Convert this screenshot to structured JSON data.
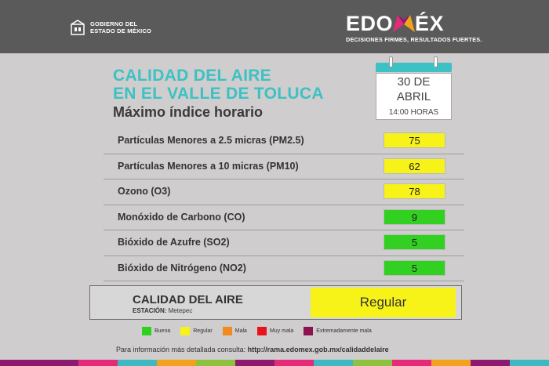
{
  "header": {
    "gov_line1": "GOBIERNO DEL",
    "gov_line2": "ESTADO DE MÉXICO",
    "brand_part1": "EDO",
    "brand_part2": "ÉX",
    "tagline": "DECISIONES FIRMES, RESULTADOS FUERTES."
  },
  "title": {
    "line1": "CALIDAD DEL AIRE",
    "line2": "EN EL VALLE DE TOLUCA",
    "subtitle": "Máximo índice horario"
  },
  "calendar": {
    "day": "30 DE",
    "month": "ABRIL",
    "time": "14:00 HORAS"
  },
  "pollutants": [
    {
      "label": "Partículas Menores a 2.5 micras (PM2.5)",
      "value": "75",
      "color": "#f7f318"
    },
    {
      "label": "Partículas Menores a 10 micras (PM10)",
      "value": "62",
      "color": "#f7f318"
    },
    {
      "label": "Ozono (O3)",
      "value": "78",
      "color": "#f7f318"
    },
    {
      "label": "Monóxido de Carbono (CO)",
      "value": "9",
      "color": "#31d021"
    },
    {
      "label": "Bióxido de Azufre (SO2)",
      "value": "5",
      "color": "#31d021"
    },
    {
      "label": "Bióxido de Nitrógeno (NO2)",
      "value": "5",
      "color": "#31d021"
    }
  ],
  "summary": {
    "title": "CALIDAD DEL AIRE",
    "station_label": "ESTACIÓN:",
    "station_value": "Metepec",
    "value": "Regular",
    "color": "#f7f318"
  },
  "legend": [
    {
      "label": "Buena",
      "color": "#2fd11f"
    },
    {
      "label": "Regular",
      "color": "#f7f318"
    },
    {
      "label": "Mala",
      "color": "#f28a1e"
    },
    {
      "label": "Muy mala",
      "color": "#e8141c"
    },
    {
      "label": "Extremadamente mala",
      "color": "#8c1352"
    }
  ],
  "footer": {
    "info_text": "Para información más detallada consulta: ",
    "info_link": "http://rama.edomex.gob.mx/calidaddelaire"
  },
  "stripe_colors": [
    "#8c1b6f",
    "#8c1b6f",
    "#e52a7a",
    "#3fb9c1",
    "#f2a31b",
    "#8ec13d",
    "#8c1b6f",
    "#e52a7a",
    "#3fb9c1",
    "#8ec13d",
    "#e52a7a",
    "#f2a31b",
    "#8c1b6f",
    "#3fb9c1"
  ]
}
